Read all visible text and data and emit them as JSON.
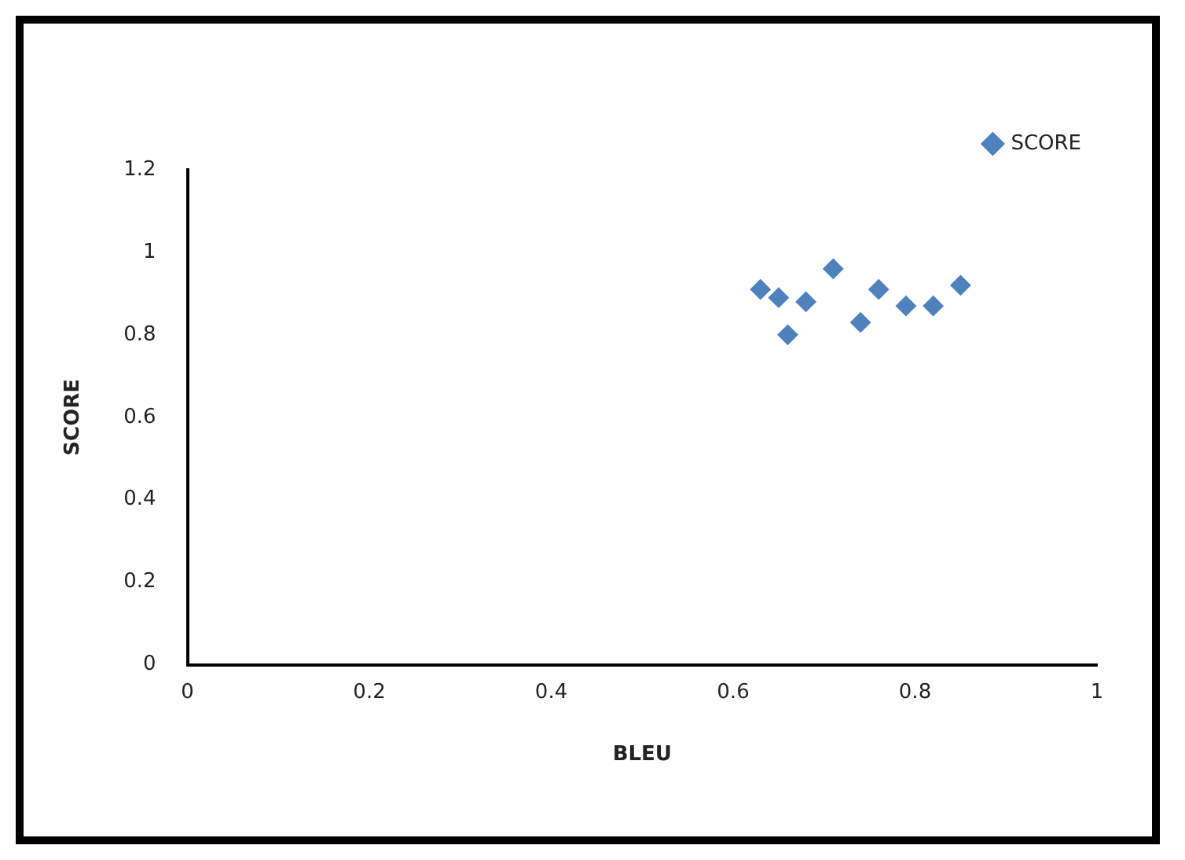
{
  "chart_data": {
    "type": "scatter",
    "xlabel": "BLEU",
    "ylabel": "SCORE",
    "x": [
      0.63,
      0.65,
      0.66,
      0.68,
      0.71,
      0.74,
      0.76,
      0.79,
      0.82,
      0.85
    ],
    "series": [
      {
        "name": "SCORE",
        "color": "#4f81bd",
        "values": [
          0.91,
          0.89,
          0.8,
          0.88,
          0.96,
          0.83,
          0.91,
          0.87,
          0.87,
          0.92
        ]
      }
    ],
    "xlim": [
      0,
      1
    ],
    "xticks": [
      0,
      0.2,
      0.4,
      0.6,
      0.8,
      1
    ],
    "ylim": [
      0,
      1.2
    ],
    "yticks": [
      0,
      0.2,
      0.4,
      0.6,
      0.8,
      1,
      1.2
    ],
    "grid": false,
    "legend": "top right",
    "marker": "diamond"
  }
}
